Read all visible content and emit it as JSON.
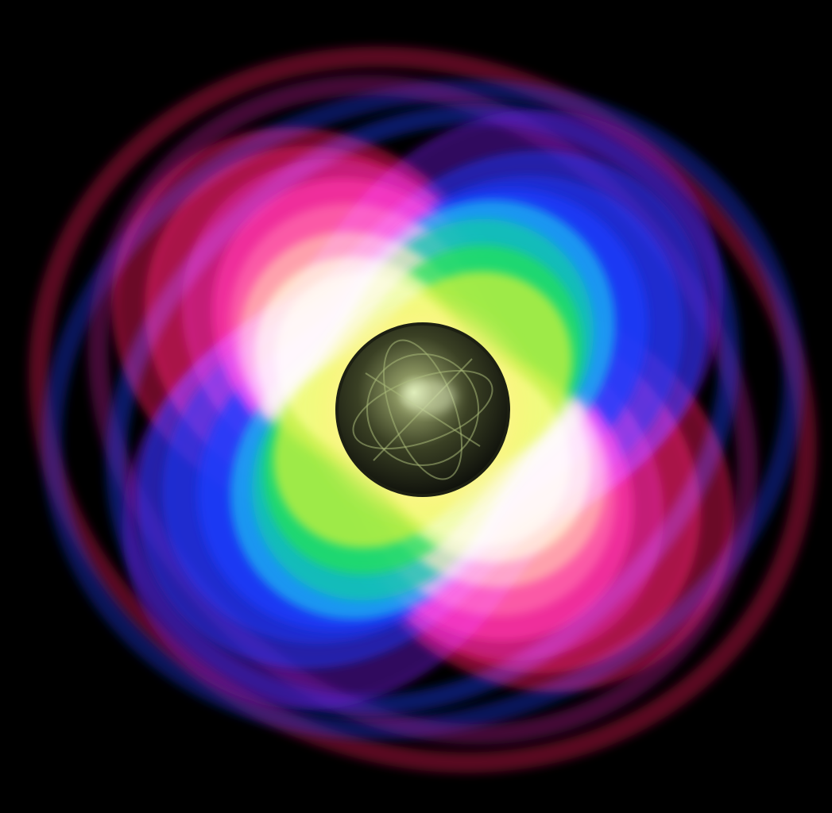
{
  "image": {
    "background_color": "#000000",
    "palette": {
      "outer_red": "#ff1a5e",
      "magenta": "#c01a9a",
      "purple": "#6a1ad0",
      "blue": "#1a3cff",
      "cyan": "#19b6f0",
      "teal": "#12c9a8",
      "green": "#22e05a",
      "lime": "#c8f03a",
      "yellow": "#fff060",
      "orange": "#ff9a1a",
      "red_orange": "#ff4a2a",
      "core_shadow": "#141610",
      "core_olive": "#4a5230",
      "core_highlight": "#d8e8b0"
    },
    "elements": [
      {
        "name": "wave-lobes",
        "description_icon": "quadrupole-wave-pattern"
      },
      {
        "name": "central-sphere",
        "description_icon": "sphere-icon"
      }
    ]
  }
}
